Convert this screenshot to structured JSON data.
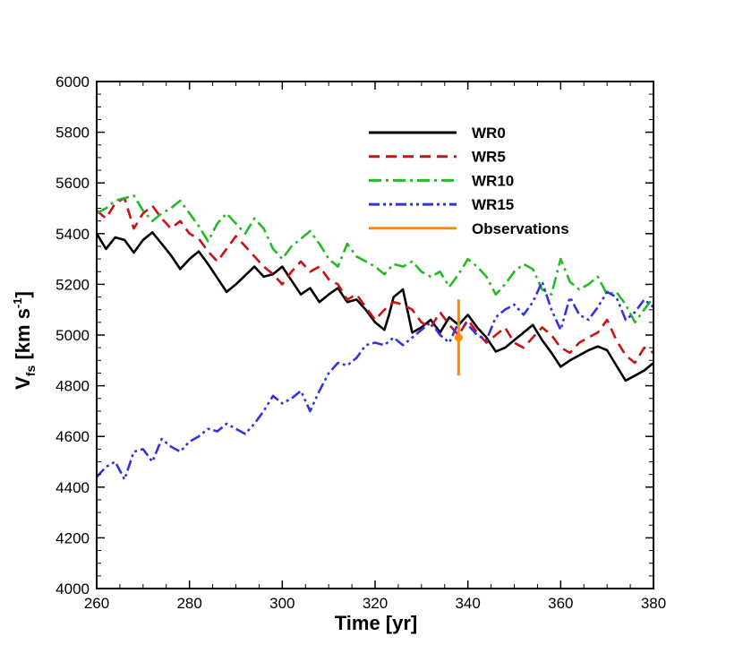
{
  "chart_data": {
    "type": "line",
    "title": "",
    "xlabel": "Time [yr]",
    "ylabel": {
      "main": "V",
      "sub": "fs",
      "units_open": " [km s",
      "units_sup": "-1",
      "units_close": "]"
    },
    "xlim": [
      260,
      380
    ],
    "ylim": [
      4000,
      6000
    ],
    "xticks": [
      260,
      280,
      300,
      320,
      340,
      360,
      380
    ],
    "yticks": [
      4000,
      4200,
      4400,
      4600,
      4800,
      5000,
      5200,
      5400,
      5600,
      5800,
      6000
    ],
    "legend_position": "top-right",
    "series": [
      {
        "name": "WR0",
        "color": "#000000",
        "dash": "solid",
        "x": [
          260,
          262,
          264,
          266,
          268,
          270,
          272,
          274,
          276,
          278,
          280,
          282,
          284,
          286,
          288,
          290,
          292,
          294,
          296,
          298,
          300,
          302,
          304,
          306,
          308,
          310,
          312,
          314,
          316,
          318,
          320,
          322,
          323,
          324,
          326,
          328,
          330,
          332,
          334,
          336,
          338,
          340,
          342,
          344,
          346,
          348,
          350,
          352,
          354,
          356,
          358,
          360,
          362,
          364,
          366,
          368,
          370,
          372,
          374,
          376,
          378,
          380
        ],
        "y": [
          5400,
          5340,
          5385,
          5375,
          5325,
          5375,
          5405,
          5360,
          5315,
          5260,
          5300,
          5330,
          5280,
          5225,
          5170,
          5200,
          5235,
          5270,
          5230,
          5240,
          5270,
          5215,
          5160,
          5185,
          5130,
          5160,
          5185,
          5130,
          5140,
          5100,
          5050,
          5020,
          5080,
          5150,
          5180,
          5010,
          5030,
          5060,
          5010,
          5070,
          5040,
          5080,
          5030,
          4990,
          4935,
          4950,
          4980,
          5010,
          5040,
          4980,
          4930,
          4875,
          4900,
          4920,
          4940,
          4955,
          4940,
          4880,
          4820,
          4840,
          4860,
          4890
        ]
      },
      {
        "name": "WR5",
        "color": "#cc1111",
        "dash": "dashed",
        "x": [
          260,
          262,
          264,
          266,
          268,
          270,
          272,
          274,
          276,
          278,
          280,
          282,
          284,
          286,
          288,
          290,
          292,
          294,
          296,
          298,
          300,
          302,
          304,
          306,
          308,
          310,
          312,
          314,
          316,
          318,
          320,
          322,
          324,
          326,
          328,
          330,
          332,
          334,
          336,
          338,
          340,
          342,
          344,
          346,
          348,
          350,
          352,
          354,
          356,
          358,
          360,
          362,
          364,
          366,
          368,
          370,
          372,
          374,
          376,
          378,
          380
        ],
        "y": [
          5490,
          5460,
          5520,
          5540,
          5420,
          5480,
          5510,
          5460,
          5420,
          5450,
          5400,
          5380,
          5330,
          5290,
          5340,
          5390,
          5350,
          5310,
          5270,
          5240,
          5200,
          5250,
          5290,
          5250,
          5270,
          5220,
          5200,
          5140,
          5160,
          5110,
          5060,
          5100,
          5130,
          5120,
          5100,
          5050,
          5030,
          5090,
          5040,
          5000,
          5060,
          5010,
          4970,
          5000,
          5030,
          4970,
          4950,
          4990,
          5030,
          5000,
          4950,
          4930,
          4970,
          4990,
          5010,
          5060,
          4980,
          4920,
          4890,
          4950,
          4930
        ]
      },
      {
        "name": "WR10",
        "color": "#22bb22",
        "dash": "dashdot",
        "x": [
          260,
          262,
          264,
          266,
          268,
          270,
          272,
          274,
          276,
          278,
          280,
          282,
          284,
          286,
          288,
          290,
          292,
          294,
          296,
          298,
          300,
          302,
          304,
          306,
          308,
          310,
          312,
          314,
          316,
          318,
          320,
          322,
          324,
          326,
          328,
          330,
          332,
          334,
          336,
          338,
          340,
          342,
          344,
          346,
          348,
          350,
          352,
          354,
          356,
          358,
          360,
          362,
          364,
          366,
          368,
          370,
          372,
          374,
          376,
          378,
          380
        ],
        "y": [
          5480,
          5500,
          5530,
          5540,
          5550,
          5490,
          5450,
          5480,
          5500,
          5530,
          5480,
          5430,
          5370,
          5440,
          5480,
          5440,
          5400,
          5460,
          5420,
          5340,
          5300,
          5350,
          5380,
          5410,
          5360,
          5300,
          5270,
          5360,
          5310,
          5290,
          5270,
          5240,
          5280,
          5270,
          5290,
          5250,
          5230,
          5250,
          5190,
          5240,
          5300,
          5270,
          5230,
          5160,
          5200,
          5250,
          5280,
          5260,
          5180,
          5160,
          5300,
          5210,
          5180,
          5200,
          5230,
          5160,
          5170,
          5120,
          5050,
          5100,
          5150
        ]
      },
      {
        "name": "WR15",
        "color": "#3333dd",
        "dash": "dashdotdot",
        "x": [
          260,
          262,
          264,
          266,
          268,
          270,
          272,
          274,
          276,
          278,
          280,
          282,
          284,
          286,
          288,
          290,
          292,
          294,
          296,
          298,
          300,
          302,
          304,
          306,
          308,
          310,
          312,
          314,
          316,
          318,
          320,
          322,
          324,
          326,
          328,
          330,
          332,
          334,
          336,
          338,
          340,
          342,
          344,
          346,
          348,
          350,
          352,
          354,
          356,
          358,
          360,
          362,
          364,
          366,
          368,
          370,
          372,
          374,
          376,
          378,
          380
        ],
        "y": [
          4440,
          4480,
          4500,
          4430,
          4540,
          4550,
          4500,
          4590,
          4560,
          4540,
          4580,
          4600,
          4630,
          4620,
          4650,
          4630,
          4610,
          4650,
          4700,
          4760,
          4730,
          4750,
          4780,
          4700,
          4780,
          4850,
          4890,
          4880,
          4910,
          4960,
          4970,
          4960,
          4990,
          4960,
          4990,
          5020,
          5050,
          5000,
          4970,
          5050,
          5040,
          5000,
          4980,
          5070,
          5100,
          5120,
          5080,
          5130,
          5210,
          5100,
          5020,
          5150,
          5080,
          5060,
          5110,
          5170,
          5150,
          5060,
          5090,
          5140,
          5110
        ]
      },
      {
        "name": "Observations",
        "color": "#ff8800",
        "dash": "solid",
        "type": "errorbar",
        "x": [
          338
        ],
        "y": [
          4990
        ],
        "yerr": [
          150
        ]
      }
    ]
  }
}
